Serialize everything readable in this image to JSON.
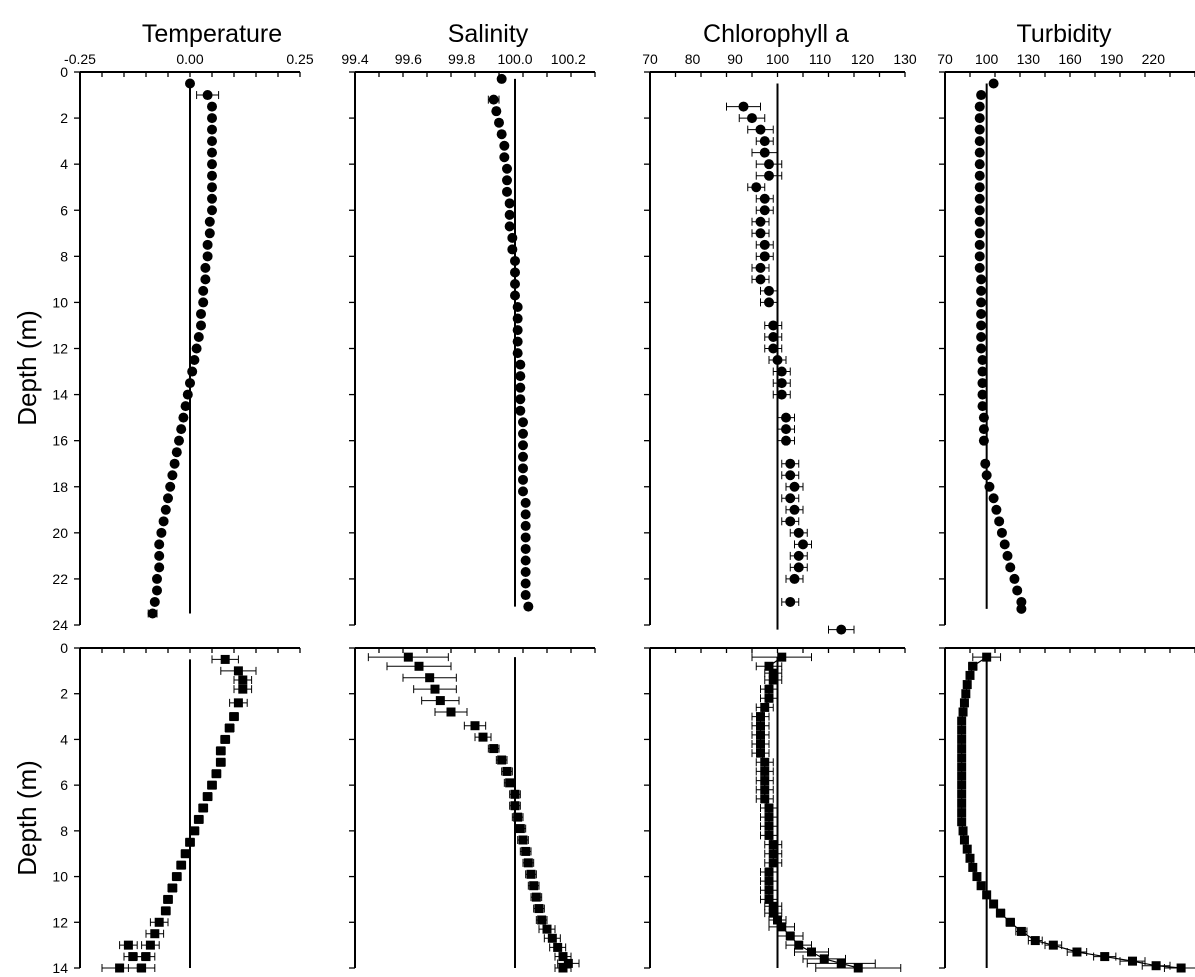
{
  "figure": {
    "titles": [
      "Temperature",
      "Salinity",
      "Chlorophyll a",
      "Turbidity"
    ],
    "ylabel": "Depth (m)"
  },
  "chart_data": [
    {
      "type": "scatter",
      "panel": "Temperature (top)",
      "marker": "circle",
      "xlim": [
        -0.25,
        0.25
      ],
      "ylim": [
        0,
        24
      ],
      "reference_x": 0.0,
      "xticks": [
        "-0.25",
        "0.00",
        "0.25"
      ],
      "yticks": [
        "0",
        "2",
        "4",
        "6",
        "8",
        "10",
        "12",
        "14",
        "16",
        "18",
        "20",
        "22",
        "24"
      ],
      "x": [
        0.0,
        0.04,
        0.05,
        0.05,
        0.05,
        0.05,
        0.05,
        0.05,
        0.05,
        0.05,
        0.05,
        0.05,
        0.045,
        0.045,
        0.04,
        0.04,
        0.035,
        0.035,
        0.03,
        0.03,
        0.025,
        0.025,
        0.02,
        0.015,
        0.01,
        0.005,
        0.0,
        -0.005,
        -0.01,
        -0.015,
        -0.02,
        -0.025,
        -0.03,
        -0.035,
        -0.04,
        -0.045,
        -0.05,
        -0.055,
        -0.06,
        -0.065,
        -0.07,
        -0.07,
        -0.07,
        -0.075,
        -0.075,
        -0.08,
        -0.085
      ],
      "y": [
        0.5,
        1.0,
        1.5,
        2.0,
        2.5,
        3.0,
        3.5,
        4.0,
        4.5,
        5.0,
        5.5,
        6.0,
        6.5,
        7.0,
        7.5,
        8.0,
        8.5,
        9.0,
        9.5,
        10.0,
        10.5,
        11.0,
        11.5,
        12.0,
        12.5,
        13.0,
        13.5,
        14.0,
        14.5,
        15.0,
        15.5,
        16.0,
        16.5,
        17.0,
        17.5,
        18.0,
        18.5,
        19.0,
        19.5,
        20.0,
        20.5,
        21.0,
        21.5,
        22.0,
        22.5,
        23.0,
        23.5
      ],
      "err": [
        0,
        0.025,
        0,
        0,
        0,
        0,
        0,
        0,
        0,
        0,
        0,
        0,
        0,
        0,
        0,
        0,
        0,
        0,
        0,
        0,
        0,
        0,
        0,
        0,
        0,
        0,
        0,
        0,
        0,
        0,
        0,
        0,
        0,
        0,
        0,
        0,
        0,
        0,
        0,
        0,
        0,
        0,
        0,
        0,
        0,
        0,
        0.01
      ]
    },
    {
      "type": "scatter",
      "panel": "Salinity (top)",
      "marker": "circle",
      "xlim": [
        99.4,
        100.3
      ],
      "ylim": [
        0,
        24
      ],
      "reference_x": 100.0,
      "xticks": [
        "99.4",
        "99.6",
        "99.8",
        "100.0",
        "100.2"
      ],
      "x": [
        99.95,
        99.92,
        99.93,
        99.94,
        99.95,
        99.96,
        99.96,
        99.97,
        99.97,
        99.97,
        99.98,
        99.98,
        99.98,
        99.99,
        99.99,
        100.0,
        100.0,
        100.0,
        100.0,
        100.01,
        100.01,
        100.01,
        100.01,
        100.01,
        100.02,
        100.02,
        100.02,
        100.02,
        100.02,
        100.03,
        100.03,
        100.03,
        100.03,
        100.03,
        100.03,
        100.03,
        100.04,
        100.04,
        100.04,
        100.04,
        100.04,
        100.04,
        100.04,
        100.04,
        100.04,
        100.05
      ],
      "y": [
        0.3,
        1.2,
        1.7,
        2.2,
        2.7,
        3.2,
        3.7,
        4.2,
        4.7,
        5.2,
        5.7,
        6.2,
        6.7,
        7.2,
        7.7,
        8.2,
        8.7,
        9.2,
        9.7,
        10.2,
        10.7,
        11.2,
        11.7,
        12.2,
        12.7,
        13.2,
        13.7,
        14.2,
        14.7,
        15.2,
        15.7,
        16.2,
        16.7,
        17.2,
        17.7,
        18.2,
        18.7,
        19.2,
        19.7,
        20.2,
        20.7,
        21.2,
        21.7,
        22.2,
        22.7,
        23.2
      ],
      "err": [
        0,
        0.02,
        0.01,
        0,
        0,
        0,
        0,
        0,
        0,
        0,
        0,
        0,
        0,
        0,
        0,
        0,
        0,
        0,
        0,
        0,
        0,
        0,
        0,
        0,
        0,
        0,
        0,
        0,
        0,
        0,
        0,
        0,
        0,
        0,
        0,
        0,
        0,
        0,
        0,
        0,
        0,
        0,
        0,
        0,
        0,
        0
      ]
    },
    {
      "type": "scatter",
      "panel": "Chlorophyll a (top)",
      "marker": "circle",
      "xlim": [
        70,
        130
      ],
      "ylim": [
        0,
        24
      ],
      "reference_x": 100,
      "xticks": [
        "70",
        "80",
        "90",
        "100",
        "110",
        "120",
        "130"
      ],
      "x": [
        92,
        94,
        96,
        97,
        97,
        98,
        98,
        95,
        97,
        97,
        96,
        96,
        97,
        97,
        96,
        96,
        98,
        98,
        99,
        99,
        99,
        100,
        101,
        101,
        101,
        102,
        102,
        102,
        103,
        103,
        104,
        103,
        104,
        103,
        105,
        106,
        105,
        105,
        104,
        103,
        115
      ],
      "y": [
        1.5,
        2.0,
        2.5,
        3.0,
        3.5,
        4.0,
        4.5,
        5.0,
        5.5,
        6.0,
        6.5,
        7.0,
        7.5,
        8.0,
        8.5,
        9.0,
        9.5,
        10.0,
        11.0,
        11.5,
        12.0,
        12.5,
        13.0,
        13.5,
        14.0,
        15.0,
        15.5,
        16.0,
        17.0,
        17.5,
        18.0,
        18.5,
        19.0,
        19.5,
        20.0,
        20.5,
        21.0,
        21.5,
        22.0,
        23.0,
        24.2
      ],
      "err": [
        4,
        3,
        3,
        2,
        3,
        3,
        3,
        2,
        2,
        2,
        2,
        2,
        2,
        2,
        2,
        2,
        2,
        2,
        2,
        2,
        2,
        2,
        2,
        2,
        2,
        2,
        2,
        2,
        2,
        2,
        2,
        2,
        2,
        2,
        2,
        2,
        2,
        2,
        2,
        2,
        3
      ]
    },
    {
      "type": "scatter",
      "panel": "Turbidity (top)",
      "marker": "circle",
      "xlim": [
        70,
        250
      ],
      "ylim": [
        0,
        24
      ],
      "reference_x": 100,
      "xticks": [
        "70",
        "100",
        "130",
        "160",
        "190",
        "220"
      ],
      "x": [
        105,
        96,
        95,
        95,
        95,
        95,
        95,
        95,
        95,
        95,
        95,
        95,
        95,
        95,
        95,
        95,
        95,
        96,
        96,
        96,
        96,
        96,
        96,
        96,
        97,
        97,
        97,
        97,
        97,
        98,
        98,
        98,
        99,
        100,
        102,
        105,
        107,
        109,
        111,
        113,
        115,
        117,
        120,
        122,
        125,
        125
      ],
      "y": [
        0.5,
        1.0,
        1.5,
        2.0,
        2.5,
        3.0,
        3.5,
        4.0,
        4.5,
        5.0,
        5.5,
        6.0,
        6.5,
        7.0,
        7.5,
        8.0,
        8.5,
        9.0,
        9.5,
        10.0,
        10.5,
        11.0,
        11.5,
        12.0,
        12.5,
        13.0,
        13.5,
        14.0,
        14.5,
        15.0,
        15.5,
        16.0,
        17.0,
        17.5,
        18.0,
        18.5,
        19.0,
        19.5,
        20.0,
        20.5,
        21.0,
        21.5,
        22.0,
        22.5,
        23.0,
        23.3
      ],
      "err": [
        0,
        2,
        0,
        0,
        0,
        0,
        0,
        0,
        0,
        0,
        0,
        0,
        0,
        0,
        0,
        0,
        0,
        0,
        0,
        0,
        0,
        0,
        0,
        0,
        0,
        0,
        0,
        0,
        0,
        0,
        0,
        0,
        0,
        0,
        0,
        0,
        0,
        0,
        0,
        0,
        0,
        0,
        0,
        0,
        0,
        0
      ]
    },
    {
      "type": "scatter",
      "panel": "Temperature (bottom)",
      "marker": "square",
      "xlim": [
        -0.25,
        0.25
      ],
      "ylim": [
        0,
        14
      ],
      "reference_x": 0.0,
      "yticks": [
        "0",
        "2",
        "4",
        "6",
        "8",
        "10",
        "12",
        "14"
      ],
      "x": [
        0.08,
        0.11,
        0.12,
        0.12,
        0.11,
        0.1,
        0.09,
        0.08,
        0.07,
        0.07,
        0.06,
        0.05,
        0.04,
        0.03,
        0.02,
        0.01,
        0.0,
        -0.01,
        -0.02,
        -0.03,
        -0.04,
        -0.05,
        -0.055,
        -0.07,
        -0.08,
        -0.09,
        -0.1,
        -0.11,
        -0.13,
        -0.14,
        -0.16
      ],
      "y": [
        0.5,
        1.0,
        1.4,
        1.8,
        2.4,
        3.0,
        3.5,
        4.0,
        4.5,
        5.0,
        5.5,
        6.0,
        6.5,
        7.0,
        7.5,
        8.0,
        8.5,
        9.0,
        9.5,
        10.0,
        10.5,
        11.0,
        11.5,
        12.0,
        12.5,
        13.0,
        13.5,
        14.0,
        13.5,
        13.0,
        14.0
      ],
      "err": [
        0.03,
        0.04,
        0.02,
        0.02,
        0.02,
        0.01,
        0.01,
        0.01,
        0.01,
        0.01,
        0.01,
        0.01,
        0.01,
        0.01,
        0.01,
        0.01,
        0.01,
        0.01,
        0.01,
        0.01,
        0.01,
        0.01,
        0.01,
        0.02,
        0.02,
        0.02,
        0.02,
        0.03,
        0.02,
        0.02,
        0.04
      ]
    },
    {
      "type": "scatter",
      "panel": "Salinity (bottom)",
      "marker": "square",
      "xlim": [
        99.4,
        100.3
      ],
      "ylim": [
        0,
        14
      ],
      "reference_x": 100.0,
      "x": [
        99.6,
        99.64,
        99.68,
        99.7,
        99.72,
        99.76,
        99.85,
        99.88,
        99.92,
        99.95,
        99.97,
        99.98,
        100.0,
        100.0,
        100.01,
        100.02,
        100.03,
        100.04,
        100.05,
        100.06,
        100.07,
        100.08,
        100.09,
        100.1,
        100.12,
        100.14,
        100.16,
        100.18,
        100.2,
        100.18
      ],
      "y": [
        0.4,
        0.8,
        1.3,
        1.8,
        2.3,
        2.8,
        3.4,
        3.9,
        4.4,
        4.9,
        5.4,
        5.9,
        6.4,
        6.9,
        7.4,
        7.9,
        8.4,
        8.9,
        9.4,
        9.9,
        10.4,
        10.9,
        11.4,
        11.9,
        12.3,
        12.7,
        13.1,
        13.5,
        13.8,
        14.0
      ],
      "err": [
        0.15,
        0.12,
        0.1,
        0.08,
        0.07,
        0.06,
        0.04,
        0.03,
        0.02,
        0.02,
        0.02,
        0.02,
        0.02,
        0.02,
        0.02,
        0.02,
        0.02,
        0.02,
        0.02,
        0.02,
        0.02,
        0.02,
        0.02,
        0.02,
        0.03,
        0.03,
        0.03,
        0.03,
        0.04,
        0.03
      ]
    },
    {
      "type": "line",
      "panel": "Chlorophyll a (bottom)",
      "marker": "square",
      "xlim": [
        70,
        130
      ],
      "ylim": [
        0,
        14
      ],
      "reference_x": 100,
      "x": [
        101,
        98,
        99,
        99,
        98,
        98,
        97,
        96,
        96,
        96,
        96,
        96,
        97,
        97,
        97,
        97,
        97,
        98,
        98,
        98,
        98,
        99,
        99,
        99,
        98,
        98,
        98,
        98,
        99,
        99,
        100,
        101,
        103,
        105,
        108,
        111,
        115,
        119
      ],
      "y": [
        0.4,
        0.8,
        1.1,
        1.4,
        1.8,
        2.2,
        2.6,
        3.0,
        3.4,
        3.8,
        4.2,
        4.6,
        5.0,
        5.4,
        5.8,
        6.2,
        6.6,
        7.0,
        7.4,
        7.8,
        8.2,
        8.6,
        9.0,
        9.4,
        9.8,
        10.2,
        10.6,
        11.0,
        11.3,
        11.6,
        11.9,
        12.2,
        12.6,
        13.0,
        13.3,
        13.6,
        13.8,
        14.0
      ],
      "err": [
        7,
        3,
        2,
        2,
        2,
        2,
        2,
        2,
        2,
        2,
        2,
        2,
        2,
        2,
        2,
        2,
        2,
        2,
        2,
        2,
        2,
        2,
        2,
        2,
        2,
        2,
        2,
        2,
        2,
        2,
        2,
        3,
        3,
        3,
        4,
        5,
        8,
        10
      ]
    },
    {
      "type": "line",
      "panel": "Turbidity (bottom)",
      "marker": "square",
      "xlim": [
        70,
        250
      ],
      "ylim": [
        0,
        14
      ],
      "reference_x": 100,
      "x": [
        100,
        90,
        88,
        86,
        85,
        84,
        83,
        82,
        82,
        82,
        82,
        82,
        82,
        82,
        82,
        82,
        82,
        82,
        82,
        83,
        84,
        86,
        88,
        90,
        93,
        96,
        100,
        105,
        110,
        117,
        125,
        135,
        148,
        165,
        185,
        205,
        222,
        240
      ],
      "y": [
        0.4,
        0.8,
        1.2,
        1.6,
        2.0,
        2.4,
        2.8,
        3.2,
        3.6,
        4.0,
        4.4,
        4.8,
        5.2,
        5.6,
        6.0,
        6.4,
        6.8,
        7.2,
        7.6,
        8.0,
        8.4,
        8.8,
        9.2,
        9.6,
        10.0,
        10.4,
        10.8,
        11.2,
        11.6,
        12.0,
        12.4,
        12.8,
        13.0,
        13.3,
        13.5,
        13.7,
        13.9,
        14.0
      ],
      "err": [
        10,
        3,
        2,
        2,
        2,
        1,
        1,
        1,
        1,
        1,
        1,
        1,
        1,
        1,
        1,
        1,
        1,
        1,
        1,
        1,
        1,
        1,
        1,
        2,
        2,
        2,
        2,
        2,
        3,
        3,
        4,
        5,
        6,
        7,
        8,
        9,
        10,
        12
      ]
    }
  ]
}
